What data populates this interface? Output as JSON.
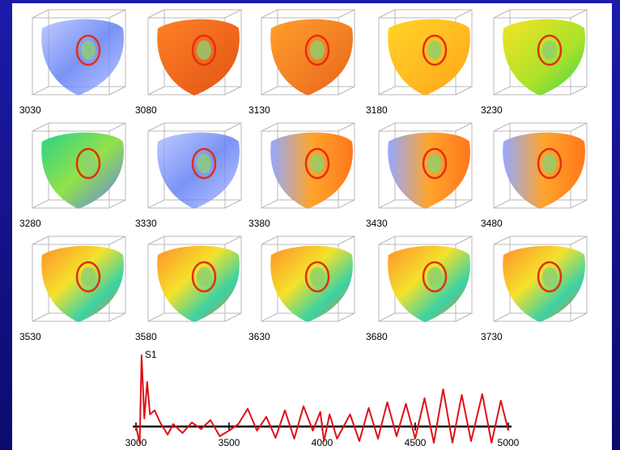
{
  "panels": [
    {
      "label": "3030"
    },
    {
      "label": "3080"
    },
    {
      "label": "3130"
    },
    {
      "label": "3180"
    },
    {
      "label": "3230"
    },
    {
      "label": "3280"
    },
    {
      "label": "3330"
    },
    {
      "label": "3380"
    },
    {
      "label": "3430"
    },
    {
      "label": "3480"
    },
    {
      "label": "3530"
    },
    {
      "label": "3580"
    },
    {
      "label": "3630"
    },
    {
      "label": "3680"
    },
    {
      "label": "3730"
    }
  ],
  "chart_data": {
    "type": "line",
    "annotation": "S1",
    "color": "#e0101a",
    "x": [
      3000,
      3020,
      3030,
      3045,
      3060,
      3075,
      3100,
      3130,
      3170,
      3200,
      3250,
      3300,
      3350,
      3400,
      3450,
      3500,
      3550,
      3600,
      3650,
      3700,
      3750,
      3800,
      3850,
      3900,
      3950,
      3990,
      4010,
      4040,
      4080,
      4150,
      4200,
      4250,
      4300,
      4350,
      4400,
      4450,
      4500,
      4550,
      4600,
      4650,
      4700,
      4750,
      4800,
      4860,
      4910,
      4960,
      5000
    ],
    "values": [
      0,
      -2,
      8.8,
      1,
      5.5,
      1.5,
      2,
      0.5,
      -1,
      0.3,
      -0.8,
      0.5,
      -0.3,
      0.8,
      -1.2,
      -0.5,
      0.3,
      2.2,
      -0.5,
      1.2,
      -1.4,
      2.0,
      -1.5,
      2.5,
      -0.5,
      1.8,
      -1.8,
      1.5,
      -1.5,
      1.5,
      -1.8,
      2.3,
      -1.5,
      3.0,
      -1.2,
      2.8,
      -1.5,
      3.5,
      -2.0,
      4.6,
      -2.0,
      3.9,
      -1.8,
      4.0,
      -2.0,
      3.2,
      -0.5
    ],
    "xlim": [
      3000,
      5000
    ],
    "xticks": [
      3000,
      3500,
      4000,
      4500,
      5000
    ],
    "ylim": [
      -3,
      9
    ]
  }
}
